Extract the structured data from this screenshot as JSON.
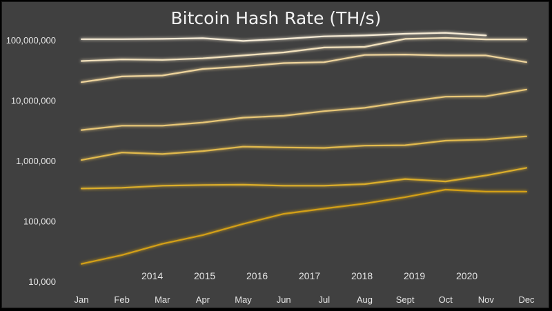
{
  "chart_data": {
    "type": "line",
    "title": "Bitcoin Hash Rate (TH/s)",
    "xlabel": "",
    "ylabel": "",
    "y_scale": "log",
    "ylim": [
      10000,
      100000000
    ],
    "y_ticks": [
      10000,
      100000,
      1000000,
      10000000,
      100000000
    ],
    "y_tick_labels": [
      "10,000",
      "100,000",
      "1,000,000",
      "10,000,000",
      "100,000,000"
    ],
    "categories": [
      "Jan",
      "Feb",
      "Mar",
      "Apr",
      "May",
      "Jun",
      "Jul",
      "Aug",
      "Sept",
      "Oct",
      "Nov",
      "Dec"
    ],
    "grid": false,
    "legend_position": "bottom",
    "series": [
      {
        "name": "2014",
        "color": "#d4a017",
        "values": [
          20000,
          28000,
          43000,
          60000,
          92000,
          135000,
          165000,
          200000,
          255000,
          340000,
          315000,
          315000
        ]
      },
      {
        "name": "2015",
        "color": "#dcae2c",
        "values": [
          355000,
          365000,
          395000,
          405000,
          410000,
          395000,
          395000,
          420000,
          510000,
          465000,
          585000,
          780000
        ]
      },
      {
        "name": "2016",
        "color": "#e2ba4e",
        "values": [
          1050000,
          1400000,
          1320000,
          1480000,
          1750000,
          1700000,
          1670000,
          1820000,
          1850000,
          2200000,
          2300000,
          2600000
        ]
      },
      {
        "name": "2017",
        "color": "#e8c777",
        "values": [
          3300000,
          3900000,
          3900000,
          4400000,
          5300000,
          5700000,
          6800000,
          7700000,
          9700000,
          11800000,
          12000000,
          15500000
        ]
      },
      {
        "name": "2018",
        "color": "#eed49c",
        "values": [
          20500000,
          25500000,
          26500000,
          34000000,
          37500000,
          42500000,
          44000000,
          58000000,
          59000000,
          57000000,
          57000000,
          44000000
        ]
      },
      {
        "name": "2019",
        "color": "#f3e2bd",
        "values": [
          46000000,
          49000000,
          48000000,
          51000000,
          57000000,
          64000000,
          77000000,
          79000000,
          107000000,
          111000000,
          105000000,
          105000000
        ]
      },
      {
        "name": "2020",
        "color": "#f7ecd6",
        "values": [
          106000000,
          106000000,
          107000000,
          110000000,
          99000000,
          107000000,
          118000000,
          122000000,
          130000000,
          135000000,
          122000000,
          null
        ]
      }
    ]
  }
}
